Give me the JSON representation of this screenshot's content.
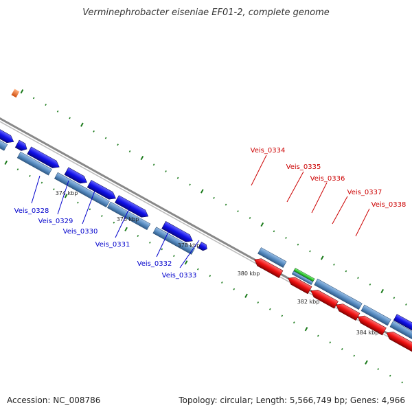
{
  "title": "Verminephrobacter eiseniae EF01-2, complete genome",
  "footer": {
    "accession": "Accession: NC_008786",
    "summary": "Topology: circular; Length: 5,566,749 bp; Genes: 4,966"
  },
  "colors": {
    "plus_strand_cds": "#1010e8",
    "minus_strand_cds": "#ee1111",
    "orf_blue": "#5b8fc4",
    "highlight_green": "#33cc33",
    "orange_feature": "#f07030",
    "backbone": "#888888",
    "tick_green": "#1a7a1a",
    "label_blue": "#0000cc",
    "label_red": "#cc0000"
  },
  "scale_labels": [
    "374 kbp",
    "376 kbp",
    "378 kbp",
    "380 kbp",
    "382 kbp",
    "384 kbp"
  ],
  "gene_labels_blue": [
    "Veis_0328",
    "Veis_0329",
    "Veis_0330",
    "Veis_0331",
    "Veis_0332",
    "Veis_0333"
  ],
  "gene_labels_red": [
    "Veis_0334",
    "Veis_0335",
    "Veis_0336",
    "Veis_0337",
    "Veis_0338"
  ]
}
